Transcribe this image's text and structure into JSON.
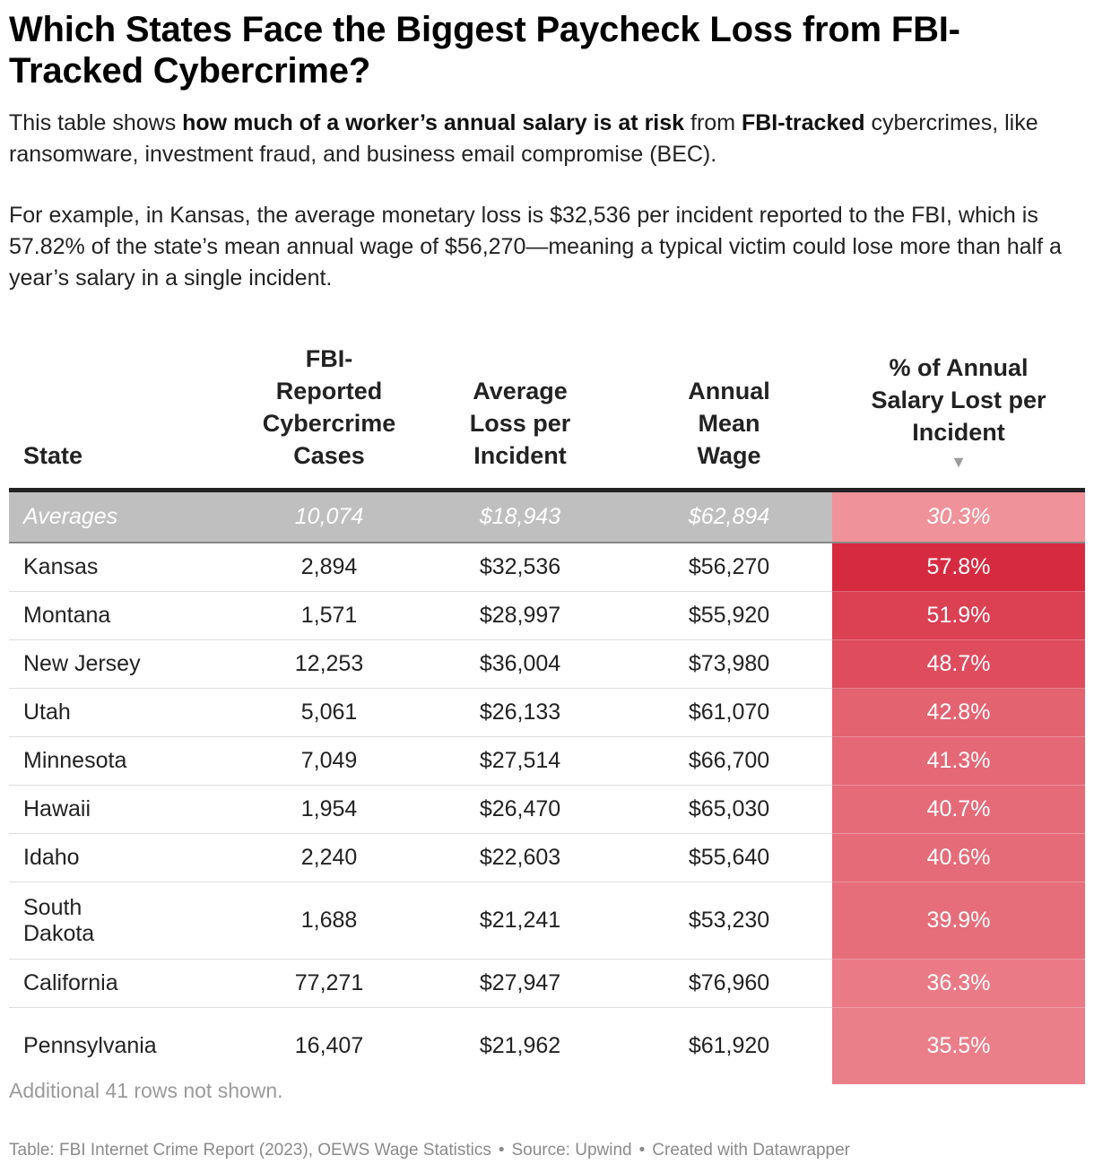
{
  "title": "Which States Face the Biggest Paycheck Loss from FBI-Tracked Cybercrime?",
  "intro": {
    "p1_pre": "This table shows ",
    "p1_bold1": "how much of a worker’s annual salary is at risk",
    "p1_mid": " from ",
    "p1_bold2": "FBI-tracked",
    "p1_post": " cybercrimes, like ransomware, investment fraud, and business email compromise (BEC).",
    "p2": "For example, in Kansas, the average monetary loss is $32,536 per incident reported to the FBI, which is 57.82% of the state’s mean annual wage of $56,270—meaning a typical victim could lose more than half a year’s salary in a single incident."
  },
  "chart_data": {
    "type": "table",
    "columns": [
      "State",
      "FBI-Reported Cybercrime Cases",
      "Average Loss per Incident",
      "Annual Mean Wage",
      "% of Annual Salary Lost per Incident"
    ],
    "sort_indicator": "▼",
    "averages": {
      "state": "Averages",
      "cases": "10,074",
      "loss": "$18,943",
      "wage": "$62,894",
      "pct": "30.3%",
      "pct_value": 30.3
    },
    "rows": [
      {
        "state": "Kansas",
        "cases": "2,894",
        "loss": "$32,536",
        "wage": "$56,270",
        "pct": "57.8%",
        "pct_value": 57.8
      },
      {
        "state": "Montana",
        "cases": "1,571",
        "loss": "$28,997",
        "wage": "$55,920",
        "pct": "51.9%",
        "pct_value": 51.9
      },
      {
        "state": "New Jersey",
        "cases": "12,253",
        "loss": "$36,004",
        "wage": "$73,980",
        "pct": "48.7%",
        "pct_value": 48.7
      },
      {
        "state": "Utah",
        "cases": "5,061",
        "loss": "$26,133",
        "wage": "$61,070",
        "pct": "42.8%",
        "pct_value": 42.8
      },
      {
        "state": "Minnesota",
        "cases": "7,049",
        "loss": "$27,514",
        "wage": "$66,700",
        "pct": "41.3%",
        "pct_value": 41.3
      },
      {
        "state": "Hawaii",
        "cases": "1,954",
        "loss": "$26,470",
        "wage": "$65,030",
        "pct": "40.7%",
        "pct_value": 40.7
      },
      {
        "state": "Idaho",
        "cases": "2,240",
        "loss": "$22,603",
        "wage": "$55,640",
        "pct": "40.6%",
        "pct_value": 40.6
      },
      {
        "state": "South Dakota",
        "cases": "1,688",
        "loss": "$21,241",
        "wage": "$53,230",
        "pct": "39.9%",
        "pct_value": 39.9
      },
      {
        "state": "California",
        "cases": "77,271",
        "loss": "$27,947",
        "wage": "$76,960",
        "pct": "36.3%",
        "pct_value": 36.3
      },
      {
        "state": "Pennsylvania",
        "cases": "16,407",
        "loss": "$21,962",
        "wage": "$61,920",
        "pct": "35.5%",
        "pct_value": 35.5
      }
    ]
  },
  "colors": {
    "scale_low": "#f4a6ab",
    "scale_high": "#d62a40"
  },
  "note": "Additional 41 rows not shown.",
  "footer": {
    "table_source": "Table: FBI Internet Crime Report (2023), OEWS Wage Statistics",
    "source": "Source: Upwind",
    "credit": "Created with Datawrapper",
    "separator": "•"
  }
}
